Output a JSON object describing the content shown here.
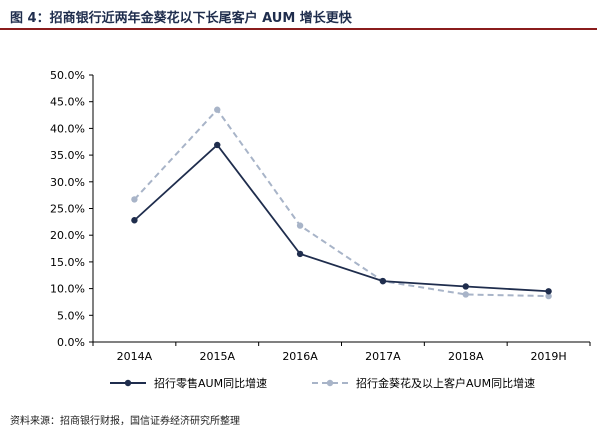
{
  "figure": {
    "title": "图 4：招商银行近两年金葵花以下长尾客户 AUM 增长更快",
    "source": "资料来源：招商银行财报，国信证券经济研究所整理"
  },
  "chart_data": {
    "type": "line",
    "categories": [
      "2014A",
      "2015A",
      "2016A",
      "2017A",
      "2018A",
      "2019H"
    ],
    "series": [
      {
        "name": "招行零售AUM同比增速",
        "values": [
          22.8,
          36.9,
          16.5,
          11.4,
          10.4,
          9.5
        ],
        "color": "#1f2d4d",
        "dashed": false
      },
      {
        "name": "招行金葵花及以上客户AUM同比增速",
        "values": [
          26.7,
          43.5,
          21.8,
          11.4,
          8.9,
          8.6
        ],
        "color": "#a8b4c8",
        "dashed": true
      }
    ],
    "ylim": [
      0,
      50
    ],
    "yticks": [
      "0.0%",
      "5.0%",
      "10.0%",
      "15.0%",
      "20.0%",
      "25.0%",
      "30.0%",
      "35.0%",
      "40.0%",
      "45.0%",
      "50.0%"
    ],
    "grid": false,
    "legend_position": "bottom"
  }
}
